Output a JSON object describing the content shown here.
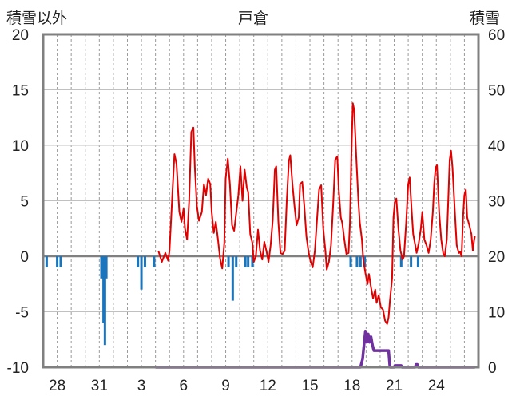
{
  "chart_data": {
    "type": "line",
    "title": "戸倉",
    "left_axis_label": "積雪以外",
    "right_axis_label": "積雪",
    "y_left": {
      "min": -10,
      "max": 20,
      "ticks": [
        "20",
        "15",
        "10",
        "5",
        "0",
        "-5",
        "-10"
      ]
    },
    "y_right": {
      "min": 0,
      "max": 60,
      "ticks": [
        "60",
        "50",
        "40",
        "30",
        "20",
        "10",
        "0"
      ]
    },
    "x_range_days": [
      0,
      31
    ],
    "x_ticks": [
      {
        "day": 1,
        "label": "28"
      },
      {
        "day": 4,
        "label": "31"
      },
      {
        "day": 7,
        "label": "3"
      },
      {
        "day": 10,
        "label": "6"
      },
      {
        "day": 13,
        "label": "9"
      },
      {
        "day": 16,
        "label": "12"
      },
      {
        "day": 19,
        "label": "15"
      },
      {
        "day": 22,
        "label": "18"
      },
      {
        "day": 25,
        "label": "21"
      },
      {
        "day": 28,
        "label": "24"
      }
    ],
    "grid": "vertical dashed daily",
    "series": [
      {
        "role": "precipitation-bars",
        "axis": "left",
        "color": "#1a75bc",
        "points": [
          [
            0.25,
            -1
          ],
          [
            1.0,
            -1
          ],
          [
            1.25,
            -1
          ],
          [
            4.15,
            -2
          ],
          [
            4.3,
            -6
          ],
          [
            4.4,
            -8
          ],
          [
            4.5,
            -2
          ],
          [
            6.75,
            -1
          ],
          [
            7.0,
            -3
          ],
          [
            7.25,
            -1
          ],
          [
            7.9,
            -1
          ],
          [
            13.2,
            -1
          ],
          [
            13.5,
            -4
          ],
          [
            13.75,
            -1
          ],
          [
            14.4,
            -1
          ],
          [
            14.6,
            -1
          ],
          [
            14.9,
            -1
          ],
          [
            21.9,
            -1
          ],
          [
            22.35,
            -1
          ],
          [
            22.6,
            -1
          ],
          [
            22.9,
            -1
          ],
          [
            25.5,
            -1
          ],
          [
            26.2,
            -1
          ],
          [
            26.7,
            -1
          ]
        ]
      },
      {
        "role": "temperature-line",
        "axis": "left",
        "color": "#e00000",
        "points": [
          [
            8.2,
            0.5
          ],
          [
            8.45,
            -0.5
          ],
          [
            8.7,
            0.3
          ],
          [
            8.9,
            -0.4
          ],
          [
            9.0,
            0.5
          ],
          [
            9.2,
            5.5
          ],
          [
            9.35,
            9.2
          ],
          [
            9.5,
            8.3
          ],
          [
            9.7,
            4
          ],
          [
            9.85,
            3.1
          ],
          [
            10.0,
            4.3
          ],
          [
            10.1,
            2.5
          ],
          [
            10.25,
            1.5
          ],
          [
            10.4,
            5
          ],
          [
            10.55,
            11.2
          ],
          [
            10.7,
            11.6
          ],
          [
            10.8,
            8
          ],
          [
            10.95,
            4.5
          ],
          [
            11.1,
            3.2
          ],
          [
            11.3,
            4
          ],
          [
            11.45,
            6.5
          ],
          [
            11.6,
            5.5
          ],
          [
            11.75,
            7
          ],
          [
            11.9,
            6.5
          ],
          [
            12.0,
            4
          ],
          [
            12.15,
            2.1
          ],
          [
            12.3,
            3.1
          ],
          [
            12.45,
            1.5
          ],
          [
            12.6,
            -0.2
          ],
          [
            12.75,
            -1.1
          ],
          [
            12.9,
            1.2
          ],
          [
            13.0,
            7
          ],
          [
            13.15,
            8.8
          ],
          [
            13.3,
            6.5
          ],
          [
            13.45,
            2.8
          ],
          [
            13.6,
            2.3
          ],
          [
            13.75,
            3.9
          ],
          [
            13.9,
            5.5
          ],
          [
            14.05,
            8.1
          ],
          [
            14.2,
            5
          ],
          [
            14.35,
            7.8
          ],
          [
            14.5,
            6.2
          ],
          [
            14.6,
            5.8
          ],
          [
            14.75,
            2
          ],
          [
            14.9,
            1.2
          ],
          [
            15.0,
            -0.5
          ],
          [
            15.15,
            0
          ],
          [
            15.3,
            2.4
          ],
          [
            15.45,
            0.5
          ],
          [
            15.6,
            -0.3
          ],
          [
            15.75,
            1.3
          ],
          [
            15.9,
            0.5
          ],
          [
            16.05,
            -0.5
          ],
          [
            16.2,
            1
          ],
          [
            16.35,
            3.2
          ],
          [
            16.5,
            7.8
          ],
          [
            16.6,
            8.1
          ],
          [
            16.75,
            3.1
          ],
          [
            16.9,
            0.3
          ],
          [
            17.05,
            0.2
          ],
          [
            17.2,
            0.5
          ],
          [
            17.35,
            5
          ],
          [
            17.5,
            8.6
          ],
          [
            17.6,
            9.1
          ],
          [
            17.75,
            6.5
          ],
          [
            17.9,
            4.5
          ],
          [
            18.05,
            2.8
          ],
          [
            18.2,
            3.5
          ],
          [
            18.3,
            6.5
          ],
          [
            18.45,
            6.7
          ],
          [
            18.6,
            4.5
          ],
          [
            18.75,
            1.8
          ],
          [
            18.9,
            0.4
          ],
          [
            19.05,
            -0.5
          ],
          [
            19.2,
            -1
          ],
          [
            19.35,
            0.5
          ],
          [
            19.5,
            3.2
          ],
          [
            19.65,
            6
          ],
          [
            19.8,
            6.4
          ],
          [
            19.95,
            2.5
          ],
          [
            20.1,
            0.5
          ],
          [
            20.2,
            -1.2
          ],
          [
            20.35,
            -0.5
          ],
          [
            20.5,
            1
          ],
          [
            20.65,
            4.5
          ],
          [
            20.8,
            8.7
          ],
          [
            20.95,
            9
          ],
          [
            21.05,
            6
          ],
          [
            21.2,
            3.5
          ],
          [
            21.3,
            3
          ],
          [
            21.45,
            1.5
          ],
          [
            21.6,
            0.2
          ],
          [
            21.75,
            0.3
          ],
          [
            21.85,
            3
          ],
          [
            21.95,
            9
          ],
          [
            22.05,
            13.8
          ],
          [
            22.15,
            13.2
          ],
          [
            22.3,
            9
          ],
          [
            22.45,
            5
          ],
          [
            22.55,
            3.1
          ],
          [
            22.7,
            1.5
          ],
          [
            22.8,
            -0.3
          ],
          [
            22.95,
            -1.5
          ],
          [
            23.1,
            -2.5
          ],
          [
            23.2,
            -1.6
          ],
          [
            23.35,
            -2.8
          ],
          [
            23.5,
            -3.8
          ],
          [
            23.65,
            -3
          ],
          [
            23.75,
            -4.2
          ],
          [
            23.9,
            -3.5
          ],
          [
            24.05,
            -4.6
          ],
          [
            24.2,
            -4.8
          ],
          [
            24.35,
            -5.8
          ],
          [
            24.5,
            -6.1
          ],
          [
            24.6,
            -5.5
          ],
          [
            24.7,
            -4
          ],
          [
            24.85,
            -2
          ],
          [
            24.95,
            3.5
          ],
          [
            25.05,
            4.9
          ],
          [
            25.15,
            5.2
          ],
          [
            25.3,
            2.5
          ],
          [
            25.45,
            0.5
          ],
          [
            25.6,
            -0.3
          ],
          [
            25.7,
            0
          ],
          [
            25.85,
            3
          ],
          [
            26.0,
            6.5
          ],
          [
            26.1,
            7.1
          ],
          [
            26.25,
            4
          ],
          [
            26.35,
            2
          ],
          [
            26.5,
            1
          ],
          [
            26.6,
            0.3
          ],
          [
            26.75,
            1.2
          ],
          [
            26.9,
            2.5
          ],
          [
            27.0,
            4
          ],
          [
            27.15,
            1.5
          ],
          [
            27.3,
            1
          ],
          [
            27.45,
            0.3
          ],
          [
            27.6,
            1.5
          ],
          [
            27.75,
            4
          ],
          [
            27.85,
            6.5
          ],
          [
            27.95,
            8
          ],
          [
            28.05,
            8.2
          ],
          [
            28.2,
            4
          ],
          [
            28.35,
            1.5
          ],
          [
            28.5,
            0.2
          ],
          [
            28.6,
            0
          ],
          [
            28.75,
            1.5
          ],
          [
            28.85,
            5
          ],
          [
            28.95,
            8.7
          ],
          [
            29.05,
            9.5
          ],
          [
            29.15,
            8
          ],
          [
            29.3,
            4.5
          ],
          [
            29.45,
            1
          ],
          [
            29.6,
            0.3
          ],
          [
            29.7,
            0.4
          ],
          [
            29.8,
            0
          ],
          [
            29.9,
            3.5
          ],
          [
            30.0,
            5.5
          ],
          [
            30.1,
            6
          ],
          [
            30.2,
            3.5
          ],
          [
            30.35,
            2.8
          ],
          [
            30.5,
            2
          ],
          [
            30.6,
            0.5
          ],
          [
            30.7,
            1.5
          ],
          [
            30.75,
            1.8
          ]
        ]
      },
      {
        "role": "snow-depth-line",
        "axis": "right",
        "color": "#7030a0",
        "points": [
          [
            8.0,
            0
          ],
          [
            22.6,
            0
          ],
          [
            22.75,
            1.5
          ],
          [
            22.85,
            4
          ],
          [
            22.95,
            6.5
          ],
          [
            23.05,
            4.5
          ],
          [
            23.15,
            6
          ],
          [
            23.25,
            4.5
          ],
          [
            23.35,
            5.5
          ],
          [
            23.45,
            4
          ],
          [
            23.55,
            3
          ],
          [
            24.0,
            3
          ],
          [
            24.6,
            3
          ],
          [
            24.7,
            0
          ],
          [
            25.0,
            0
          ],
          [
            25.05,
            0.3
          ],
          [
            25.5,
            0.3
          ],
          [
            25.55,
            0
          ],
          [
            26.5,
            0
          ],
          [
            26.55,
            0.5
          ],
          [
            26.65,
            0.5
          ],
          [
            26.7,
            0
          ],
          [
            30.75,
            0
          ]
        ]
      }
    ]
  }
}
